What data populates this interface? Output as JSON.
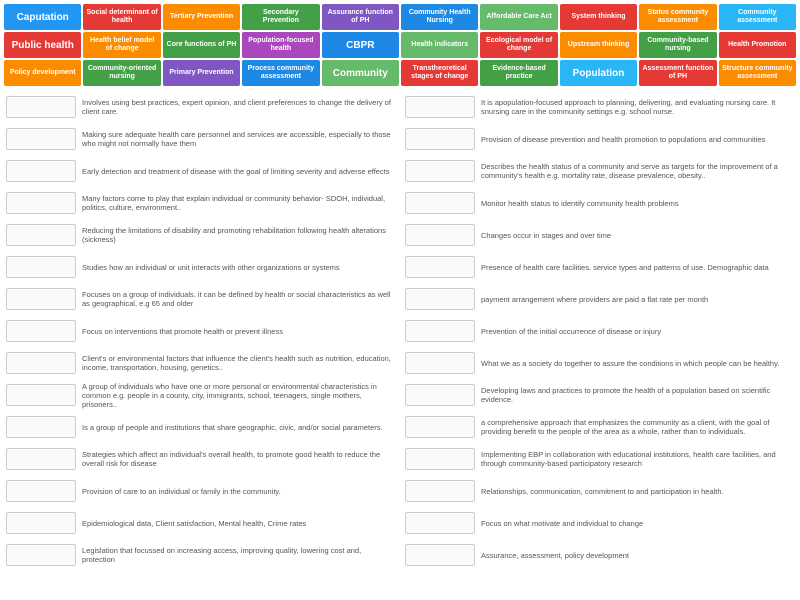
{
  "tags": [
    {
      "label": "Caputation",
      "bg": "#2196f3",
      "large": true
    },
    {
      "label": "Social determinant of health",
      "bg": "#e53935"
    },
    {
      "label": "Tertiary Prevention",
      "bg": "#fb8c00"
    },
    {
      "label": "Secondary Prevention",
      "bg": "#43a047"
    },
    {
      "label": "Assurance function of PH",
      "bg": "#7e57c2"
    },
    {
      "label": "Community Health Nursing",
      "bg": "#1e88e5"
    },
    {
      "label": "Affordable Care Act",
      "bg": "#66bb6a"
    },
    {
      "label": "System thinking",
      "bg": "#e53935"
    },
    {
      "label": "Status community assessment",
      "bg": "#fb8c00"
    },
    {
      "label": "Community assessment",
      "bg": "#29b6f6"
    },
    {
      "label": "Public health",
      "bg": "#e53935",
      "large": true
    },
    {
      "label": "Health belief model of change",
      "bg": "#fb8c00"
    },
    {
      "label": "Core functions of PH",
      "bg": "#43a047"
    },
    {
      "label": "Population-focused health",
      "bg": "#ab47bc"
    },
    {
      "label": "CBPR",
      "bg": "#1e88e5",
      "large": true
    },
    {
      "label": "Health indicators",
      "bg": "#66bb6a"
    },
    {
      "label": "Ecological model of change",
      "bg": "#e53935"
    },
    {
      "label": "Upstream thinking",
      "bg": "#fb8c00"
    },
    {
      "label": "Community-based nursing",
      "bg": "#43a047"
    },
    {
      "label": "Health Promotion",
      "bg": "#e53935"
    },
    {
      "label": "Policy development",
      "bg": "#fb8c00"
    },
    {
      "label": "Community-oriented nursing",
      "bg": "#43a047"
    },
    {
      "label": "Primary Prevention",
      "bg": "#7e57c2"
    },
    {
      "label": "Process community assessment",
      "bg": "#1e88e5"
    },
    {
      "label": "Community",
      "bg": "#66bb6a",
      "large": true
    },
    {
      "label": "Transtheoretical stages of change",
      "bg": "#e53935"
    },
    {
      "label": "Evidence-based practice",
      "bg": "#43a047"
    },
    {
      "label": "Population",
      "bg": "#29b6f6",
      "large": true
    },
    {
      "label": "Assessment function of PH",
      "bg": "#e53935"
    },
    {
      "label": "Structure community assessment",
      "bg": "#fb8c00"
    }
  ],
  "left": [
    "Involves using best practices, expert opinion, and client preferences to change the delivery of client care.",
    "Making sure adequate health care personnel and services are accessible, especially to those who might not normally have them",
    "Early detection and treatment of disease with the goal of limiting severity and adverse effects",
    "Many factors come to play that explain individual or community behavior- SDOH, individual, politics, culture, environment..",
    "Reducing the limitations of disability and promoting rehabilitation following health alterations (sickness)",
    "Studies how an individual or unit interacts with other organizations or systems",
    "Focuses on a group of individuals. it can be defined by health or social characteristics as well as geographical, e.g 65 and older",
    "Focus on interventions that promote health or prevent illness",
    "Client's or environmental factors that influence the client's health such as nutrition, education, income, transportation, housing, genetics..",
    "A group of individuals who have one or more personal or environmental characteristics in common e.g. people in a county, city, immigrants, school, teenagers, single mothers, prisoners..",
    "Is a group of people and institutions that share geographic, civic, and/or social parameters.",
    "Strategies which affect an individual's overall health, to promote good health to reduce the overall risk for disease",
    "Provision of care to an individual or family in the community.",
    "Epidemiological data, Client satisfaction, Mental health, Crime rates",
    "Legislation that focussed on increasing access, improving quality, lowering cost and, protection"
  ],
  "right": [
    "It is apopulation-focused approach to planning, delivering, and evaluating nursing care. It snursing care in the community settings e.g. school nurse.",
    "Provision of disease prevention and health promotion to populations and communities",
    "Describes the health status of a community and serve as targets for the improvement of a community's health e.g. mortality rate, disease prevalence, obesity..",
    "Monitor health status to identify community health problems",
    "Changes occur in stages and over time",
    "Presence of health care facilities. service types and patterns of use. Demographic data",
    "payment arrangement where providers are paid a flat rate per month",
    "Prevention of the initial occurrence of disease or injury",
    "What we as a society do together to assure the conditions in which people can be healthy.",
    "Developing laws and practices to promote the health of a population based on scientific evidence.",
    "a comprehensive approach that emphasizes the community as a client, with the goal of providing benefit to the people of the area as a whole, rather than to individuals.",
    "Implementing EBP in collaboration with educational institutions, health care facilities, and through community-based participatory research",
    "Relationships, communication, commitment to and participation in health.",
    "Focus on what motivate and individual to change",
    "Assurance, assessment, policy development"
  ]
}
